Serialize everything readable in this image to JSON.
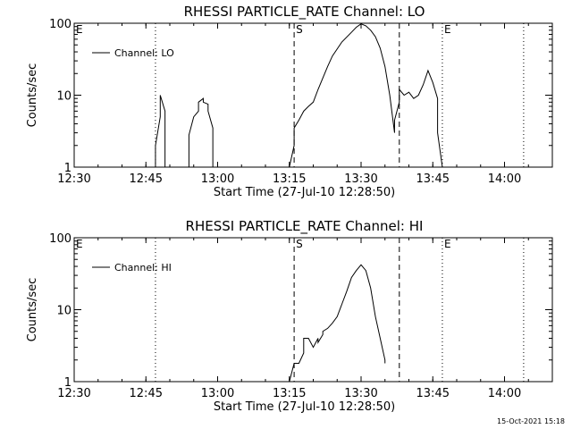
{
  "footer": {
    "timestamp": "15-Oct-2021 15:18"
  },
  "chart_data": [
    {
      "type": "line",
      "title": "RHESSI PARTICLE_RATE Channel: LO",
      "xlabel": "Start Time (27-Jul-10 12:28:50)",
      "ylabel": "Counts/sec",
      "yscale": "log",
      "ylim": [
        1,
        100
      ],
      "xlim": [
        "12:30",
        "14:10"
      ],
      "x_ticks": [
        "12:30",
        "12:45",
        "13:00",
        "13:15",
        "13:30",
        "13:45",
        "14:00"
      ],
      "y_ticks": [
        "1",
        "10",
        "100"
      ],
      "legend": {
        "entries": [
          "Channel: LO"
        ],
        "placement": "top-left"
      },
      "markers": [
        {
          "label": "E",
          "time": "12:30",
          "style": "dotted"
        },
        {
          "label": "",
          "time": "12:47",
          "style": "dotted"
        },
        {
          "label": "S",
          "time": "13:16",
          "style": "dashed"
        },
        {
          "label": "",
          "time": "13:38",
          "style": "dashed"
        },
        {
          "label": "E",
          "time": "13:47",
          "style": "dotted"
        },
        {
          "label": "",
          "time": "14:04",
          "style": "dotted"
        }
      ],
      "series": [
        {
          "name": "Channel: LO",
          "segments": [
            {
              "x": [
                "12:47",
                "12:47",
                "12:48",
                "12:48",
                "12:48",
                "12:49",
                "12:49"
              ],
              "y": [
                1,
                2,
                5,
                9,
                10,
                6,
                1
              ]
            },
            {
              "x": [
                "12:54",
                "12:54",
                "12:55",
                "12:56",
                "12:56",
                "12:57",
                "12:57",
                "12:58",
                "12:58",
                "12:59",
                "12:59",
                "12:59"
              ],
              "y": [
                1,
                2.8,
                5,
                6,
                8,
                9,
                8,
                7.5,
                6,
                3.5,
                2,
                1
              ]
            },
            {
              "x": [
                "13:15",
                "13:16",
                "13:16",
                "13:17",
                "13:18",
                "13:19",
                "13:20",
                "13:21",
                "13:23",
                "13:24",
                "13:26",
                "13:28",
                "13:29",
                "13:30",
                "13:31",
                "13:32",
                "13:33",
                "13:34",
                "13:35",
                "13:36",
                "13:37",
                "13:37",
                "13:38",
                "13:38",
                "13:39",
                "13:40",
                "13:41",
                "13:42",
                "13:43",
                "13:44",
                "13:45",
                "13:46",
                "13:46",
                "13:47"
              ],
              "y": [
                1,
                2,
                3.5,
                4.5,
                6,
                7,
                8,
                12,
                25,
                35,
                55,
                75,
                88,
                98,
                92,
                80,
                65,
                45,
                25,
                10,
                3,
                4.5,
                8,
                12,
                10,
                11,
                9,
                10,
                14,
                22,
                15,
                9,
                3,
                1
              ]
            }
          ]
        }
      ]
    },
    {
      "type": "line",
      "title": "RHESSI PARTICLE_RATE Channel: HI",
      "xlabel": "Start Time (27-Jul-10 12:28:50)",
      "ylabel": "Counts/sec",
      "yscale": "log",
      "ylim": [
        1,
        100
      ],
      "xlim": [
        "12:30",
        "14:10"
      ],
      "x_ticks": [
        "12:30",
        "12:45",
        "13:00",
        "13:15",
        "13:30",
        "13:45",
        "14:00"
      ],
      "y_ticks": [
        "1",
        "10",
        "100"
      ],
      "legend": {
        "entries": [
          "Channel: HI"
        ],
        "placement": "top-left"
      },
      "markers": [
        {
          "label": "E",
          "time": "12:30",
          "style": "dotted"
        },
        {
          "label": "",
          "time": "12:47",
          "style": "dotted"
        },
        {
          "label": "S",
          "time": "13:16",
          "style": "dashed"
        },
        {
          "label": "",
          "time": "13:38",
          "style": "dashed"
        },
        {
          "label": "E",
          "time": "13:47",
          "style": "dotted"
        },
        {
          "label": "",
          "time": "14:04",
          "style": "dotted"
        }
      ],
      "series": [
        {
          "name": "Channel: HI",
          "segments": [
            {
              "x": [
                "13:15",
                "13:16",
                "13:17",
                "13:18",
                "13:18",
                "13:19",
                "13:20",
                "13:21",
                "13:21",
                "13:22",
                "13:22",
                "13:23",
                "13:24",
                "13:25",
                "13:26",
                "13:27",
                "13:28",
                "13:29",
                "13:30",
                "13:31",
                "13:32",
                "13:33",
                "13:34",
                "13:35",
                "13:35"
              ],
              "y": [
                1,
                1.8,
                1.8,
                2.5,
                4,
                4,
                3,
                4,
                3.5,
                4.5,
                5,
                5.5,
                6.5,
                8,
                12,
                18,
                28,
                35,
                42,
                35,
                20,
                8,
                4,
                2,
                1.8
              ]
            }
          ]
        }
      ]
    }
  ]
}
